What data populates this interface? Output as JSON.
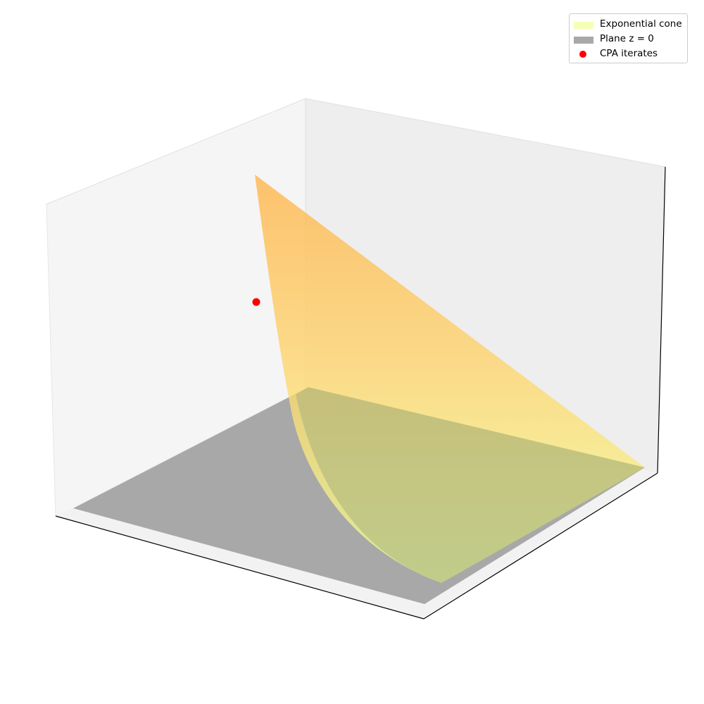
{
  "chart_data": {
    "type": "surface3d",
    "title": "",
    "xlabel": "",
    "ylabel": "",
    "zlabel": "",
    "ticks": "hidden",
    "grid": false,
    "legend_position": "top-right",
    "series": [
      {
        "name": "Exponential cone",
        "kind": "surface",
        "colormap": "yellow-to-orange",
        "alpha": 0.75
      },
      {
        "name": "Plane $z = 0$",
        "kind": "surface",
        "color": "#a0a0a0",
        "alpha": 0.85
      },
      {
        "name": "CPA iterates",
        "kind": "scatter",
        "color": "#ff0000",
        "points": 1
      }
    ]
  },
  "legend": {
    "items": [
      {
        "label": "Exponential cone",
        "color": "#f4ffb3"
      },
      {
        "label": "Plane z = 0",
        "color": "#a8a8a8"
      },
      {
        "label": "CPA iterates",
        "color": "#ff0000"
      }
    ]
  },
  "colors": {
    "pane_left": "#f4f4f4",
    "pane_back": "#ececec",
    "pane_floor": "#f2f2f2",
    "plane": "#a0a0a0",
    "cone_top": "#ffb347",
    "cone_mid": "#ffe066",
    "cone_low": "#f4ff9a",
    "iterate": "#ff0000"
  }
}
